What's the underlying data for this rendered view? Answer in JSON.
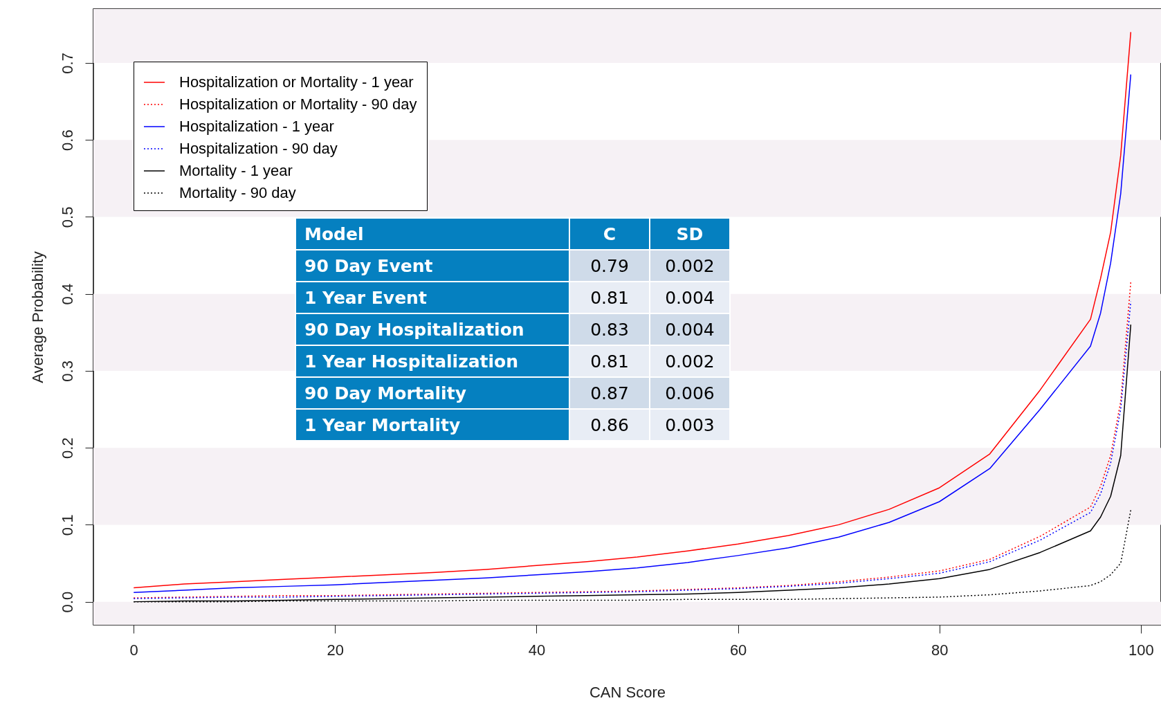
{
  "chart_data": {
    "type": "line",
    "xlabel": "CAN Score",
    "ylabel": "Average Probability",
    "x": [
      0,
      5,
      10,
      15,
      20,
      25,
      30,
      35,
      40,
      45,
      50,
      55,
      60,
      65,
      70,
      75,
      80,
      85,
      90,
      95,
      96,
      97,
      98,
      99
    ],
    "xlim": [
      -4,
      102
    ],
    "xticks": [
      0,
      20,
      40,
      60,
      80,
      100
    ],
    "ylim": [
      -0.03,
      0.77
    ],
    "yticks": [
      {
        "value": 0,
        "label": "0.0"
      },
      0.1,
      0.2,
      0.3,
      0.4,
      0.5,
      0.6,
      0.7
    ],
    "legend": "top left",
    "grid": false,
    "marker": "none",
    "series": [
      {
        "name": "Hospitalization or Mortality - 1 year",
        "color": "#ff0000",
        "line_style": "solid",
        "values": [
          0.018,
          0.023,
          0.026,
          0.029,
          0.032,
          0.035,
          0.038,
          0.042,
          0.047,
          0.052,
          0.058,
          0.066,
          0.075,
          0.086,
          0.1,
          0.12,
          0.148,
          0.192,
          0.275,
          0.367,
          0.42,
          0.48,
          0.58,
          0.74
        ]
      },
      {
        "name": "Hospitalization or Mortality - 90 day",
        "color": "#ff0000",
        "line_style": "dotted",
        "values": [
          0.005,
          0.006,
          0.007,
          0.008,
          0.008,
          0.009,
          0.01,
          0.011,
          0.012,
          0.013,
          0.014,
          0.016,
          0.018,
          0.021,
          0.026,
          0.032,
          0.04,
          0.055,
          0.085,
          0.123,
          0.15,
          0.19,
          0.26,
          0.415
        ]
      },
      {
        "name": "Hospitalization - 1 year",
        "color": "#0000ff",
        "line_style": "solid",
        "values": [
          0.012,
          0.015,
          0.018,
          0.02,
          0.022,
          0.025,
          0.028,
          0.031,
          0.035,
          0.039,
          0.044,
          0.051,
          0.06,
          0.07,
          0.084,
          0.103,
          0.13,
          0.173,
          0.25,
          0.332,
          0.375,
          0.44,
          0.53,
          0.685
        ]
      },
      {
        "name": "Hospitalization - 90 day",
        "color": "#0000ff",
        "line_style": "dotted",
        "values": [
          0.004,
          0.005,
          0.006,
          0.006,
          0.007,
          0.008,
          0.009,
          0.01,
          0.011,
          0.012,
          0.013,
          0.015,
          0.017,
          0.02,
          0.024,
          0.03,
          0.037,
          0.052,
          0.08,
          0.116,
          0.14,
          0.18,
          0.25,
          0.39
        ]
      },
      {
        "name": "Mortality - 1 year",
        "color": "#000000",
        "line_style": "solid",
        "values": [
          0.0,
          0.001,
          0.001,
          0.002,
          0.003,
          0.004,
          0.005,
          0.006,
          0.007,
          0.008,
          0.009,
          0.01,
          0.012,
          0.015,
          0.018,
          0.023,
          0.03,
          0.042,
          0.064,
          0.092,
          0.11,
          0.137,
          0.19,
          0.36
        ]
      },
      {
        "name": "Mortality - 90 day",
        "color": "#000000",
        "line_style": "dotted",
        "values": [
          0.0,
          0.0,
          0.0,
          0.001,
          0.001,
          0.001,
          0.001,
          0.002,
          0.002,
          0.002,
          0.002,
          0.003,
          0.003,
          0.003,
          0.004,
          0.005,
          0.006,
          0.009,
          0.014,
          0.021,
          0.026,
          0.035,
          0.05,
          0.119
        ]
      }
    ],
    "bands": [
      {
        "axis": "y",
        "from": -0.03,
        "to": 0,
        "color": "#f6f1f5"
      },
      {
        "axis": "y",
        "from": 0.1,
        "to": 0.2,
        "color": "#f6f1f5"
      },
      {
        "axis": "y",
        "from": 0.3,
        "to": 0.4,
        "color": "#f6f1f5"
      },
      {
        "axis": "y",
        "from": 0.5,
        "to": 0.6,
        "color": "#f6f1f5"
      },
      {
        "axis": "y",
        "from": 0.7,
        "to": 0.77,
        "color": "#f6f1f5"
      }
    ],
    "annotations": [
      "Model",
      "C",
      "SD",
      "90 Day Event",
      "0.79",
      "0.002",
      "1 Year Event",
      "0.81",
      "0.004",
      "90 Day Hospitalization",
      "0.83",
      "0.004",
      "1 Year Hospitalization",
      "0.81",
      "0.002",
      "90 Day Mortality",
      "0.87",
      "0.006",
      "1 Year Mortality",
      "0.86",
      "0.003"
    ]
  }
}
